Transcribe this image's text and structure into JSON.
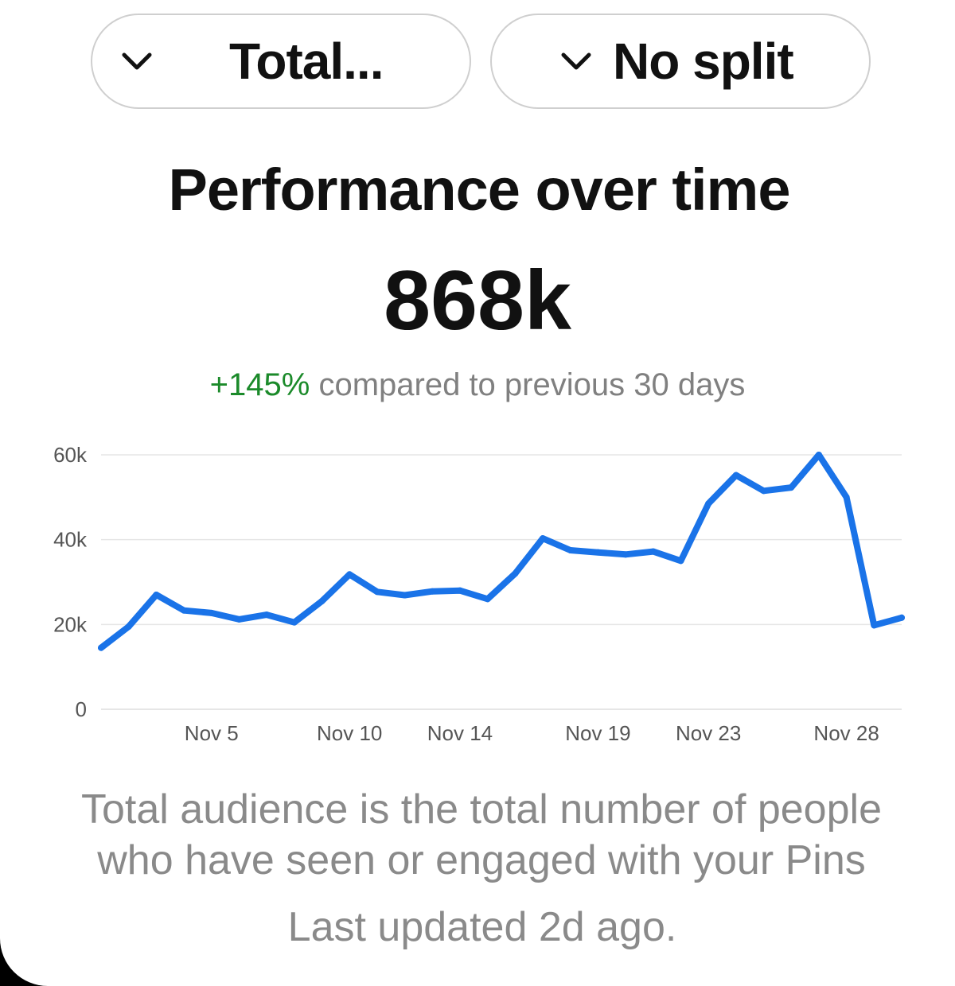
{
  "filters": {
    "metric": {
      "label": "Total...",
      "icon": "chevron-down-icon"
    },
    "split": {
      "label": "No split",
      "icon": "chevron-down-icon"
    }
  },
  "header": {
    "title": "Performance over time",
    "total": "868k",
    "delta": "+145%",
    "comparison_text": " compared to previous 30 days"
  },
  "colors": {
    "line": "#1a73e8",
    "positive": "#1b8a2a",
    "grid": "#e6e6e6",
    "muted_text": "#8a8a8a"
  },
  "chart_data": {
    "type": "line",
    "title": "",
    "xlabel": "",
    "ylabel": "",
    "ylim": [
      0,
      60000
    ],
    "y_ticks": [
      0,
      20000,
      40000,
      60000
    ],
    "y_tick_labels": [
      "0",
      "20k",
      "40k",
      "60k"
    ],
    "x_tick_labels": [
      {
        "label": "Nov 5",
        "day": 5
      },
      {
        "label": "Nov 10",
        "day": 10
      },
      {
        "label": "Nov 14",
        "day": 14
      },
      {
        "label": "Nov 19",
        "day": 19
      },
      {
        "label": "Nov 23",
        "day": 23
      },
      {
        "label": "Nov 28",
        "day": 28
      }
    ],
    "grid": true,
    "series": [
      {
        "x": [
          1,
          2,
          3,
          4,
          5,
          6,
          7,
          8,
          9,
          10,
          11,
          12,
          13,
          14,
          15,
          16,
          17,
          18,
          19,
          20,
          21,
          22,
          23,
          24,
          25,
          26,
          27,
          28,
          29,
          30
        ],
        "values": [
          14500,
          19500,
          27000,
          23300,
          22700,
          21200,
          22300,
          20500,
          25500,
          31800,
          27700,
          26900,
          27800,
          28000,
          26000,
          32000,
          40300,
          37500,
          37000,
          36500,
          37200,
          35000,
          48500,
          55200,
          51500,
          52300,
          60000,
          50000,
          19800,
          21600
        ]
      }
    ]
  },
  "footer": {
    "description": "Total audience is the total number of people who have seen or engaged with your Pins",
    "last_updated": "Last updated 2d ago."
  }
}
